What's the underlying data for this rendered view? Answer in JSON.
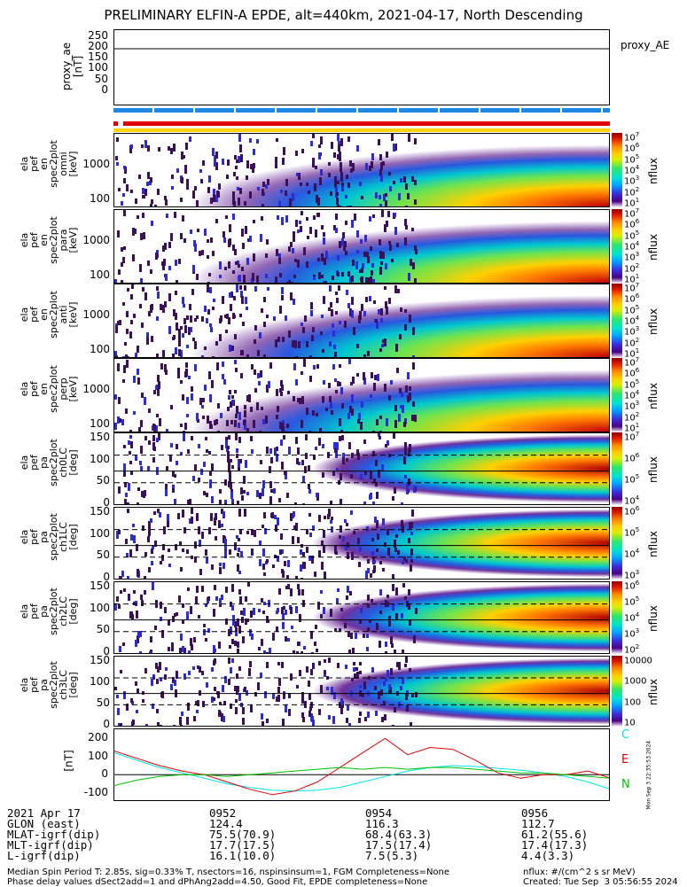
{
  "title": "PRELIMINARY ELFIN-A EPDE, alt=440km, 2021-04-17, North Descending",
  "proxy": {
    "ylabel": "proxy_ae\n[nT]",
    "yticks": [
      "250",
      "200",
      "150",
      "100",
      "50",
      "0"
    ],
    "legend": "proxy_AE"
  },
  "panels": [
    {
      "ylabel": "ela\npef\nen\nspec2plot\nomni\n[keV]",
      "yticks": [
        "1000",
        "100"
      ]
    },
    {
      "ylabel": "ela\npef\nen\nspec2plot\npara\n[keV]",
      "yticks": [
        "1000",
        "100"
      ]
    },
    {
      "ylabel": "ela\npef\nen\nspec2plot\nanti\n[keV]",
      "yticks": [
        "1000",
        "100"
      ]
    },
    {
      "ylabel": "ela\npef\nen\nspec2plot\nperp\n[keV]",
      "yticks": [
        "1000",
        "100"
      ]
    },
    {
      "ylabel": "ela\npef\npa\nspec2plot\nch0LC\n[deg]",
      "yticks": [
        "150",
        "100",
        "50",
        "0"
      ]
    },
    {
      "ylabel": "ela\npef\npa\nspec2plot\nch1LC\n[deg]",
      "yticks": [
        "150",
        "100",
        "50",
        "0"
      ]
    },
    {
      "ylabel": "ela\npef\npa\nspec2plot\nch2LC\n[deg]",
      "yticks": [
        "150",
        "100",
        "50",
        "0"
      ]
    },
    {
      "ylabel": "ela\npef\npa\nspec2plot\nch3LC\n[deg]",
      "yticks": [
        "150",
        "100",
        "50",
        "0"
      ]
    }
  ],
  "colorbars": [
    {
      "labels": [
        "10",
        "10",
        "10",
        "10",
        "10",
        "10",
        "10"
      ],
      "exp": [
        "7",
        "6",
        "5",
        "4",
        "3",
        "2",
        "1"
      ],
      "unit": "nflux"
    },
    {
      "labels": [
        "10",
        "10",
        "10",
        "10",
        "10",
        "10",
        "10"
      ],
      "exp": [
        "7",
        "6",
        "5",
        "4",
        "3",
        "2",
        "1"
      ],
      "unit": "nflux"
    },
    {
      "labels": [
        "10",
        "10",
        "10",
        "10",
        "10",
        "10",
        "10"
      ],
      "exp": [
        "7",
        "6",
        "5",
        "4",
        "3",
        "2",
        "1"
      ],
      "unit": "nflux"
    },
    {
      "labels": [
        "10",
        "10",
        "10",
        "10",
        "10",
        "10",
        "10"
      ],
      "exp": [
        "7",
        "6",
        "5",
        "4",
        "3",
        "2",
        "1"
      ],
      "unit": "nflux"
    },
    {
      "labels": [
        "10",
        "10",
        "10",
        "10"
      ],
      "exp": [
        "7",
        "6",
        "5",
        "4"
      ],
      "unit": "nflux"
    },
    {
      "labels": [
        "10",
        "10",
        "10",
        "10"
      ],
      "exp": [
        "6",
        "5",
        "4",
        "3"
      ],
      "unit": "nflux"
    },
    {
      "labels": [
        "10",
        "10",
        "10",
        "10",
        "10"
      ],
      "exp": [
        "6",
        "5",
        "4",
        "3",
        "2"
      ],
      "unit": "nflux"
    },
    {
      "labels": [
        "10000",
        "1000",
        "100",
        "10"
      ],
      "exp": [
        "",
        "",
        "",
        ""
      ],
      "unit": "nflux"
    }
  ],
  "chart_data": {
    "type": "line",
    "ylabel": "[nT]",
    "yticks": [
      "200",
      "100",
      "0",
      "-100"
    ],
    "ylim": [
      -150,
      250
    ],
    "series": [
      {
        "name": "C",
        "color": "#00e5ee",
        "values": [
          120,
          80,
          40,
          10,
          -20,
          -50,
          -70,
          -85,
          -90,
          -85,
          -70,
          -40,
          -10,
          20,
          40,
          50,
          45,
          35,
          25,
          10,
          -10,
          -40,
          -80
        ]
      },
      {
        "name": "E",
        "color": "#e00000",
        "values": [
          130,
          90,
          50,
          20,
          0,
          -40,
          -80,
          -110,
          -90,
          -40,
          40,
          120,
          200,
          110,
          150,
          140,
          80,
          10,
          -20,
          0,
          0,
          20,
          -20
        ]
      },
      {
        "name": "N",
        "color": "#00c000",
        "values": [
          -60,
          -30,
          -10,
          0,
          0,
          -10,
          0,
          10,
          20,
          30,
          40,
          30,
          40,
          30,
          40,
          40,
          30,
          20,
          10,
          10,
          0,
          -10,
          -20
        ]
      }
    ]
  },
  "footer": {
    "rows": [
      [
        "2021 Apr 17",
        "0952",
        "0954",
        "0956"
      ],
      [
        "GLON (east)",
        "124.4",
        "116.3",
        "112.7"
      ],
      [
        "MLAT-igrf(dip)",
        "75.5(70.9)",
        "68.4(63.3)",
        "61.2(55.6)"
      ],
      [
        "MLT-igrf(dip)",
        "17.7(17.5)",
        "17.5(17.4)",
        "17.4(17.3)"
      ],
      [
        "L-igrf(dip)",
        "16.1(10.0)",
        "7.5(5.3)",
        "4.4(3.3)"
      ]
    ],
    "note1": "Median Spin Period T: 2.85s, sig=0.33% T, nsectors=16, nspinsinsum=1, FGM Completeness=None",
    "note2": "Phase delay values dSect2add=1 and dPhAng2add=4.50, Good Fit, EPDE completeness=None",
    "units": "nflux: #/(cm^2 s sr MeV)",
    "created": "Created: Tue Sep  3 05:56:55 2024",
    "side": "Mon Sep  3 22:35:53 2024"
  }
}
